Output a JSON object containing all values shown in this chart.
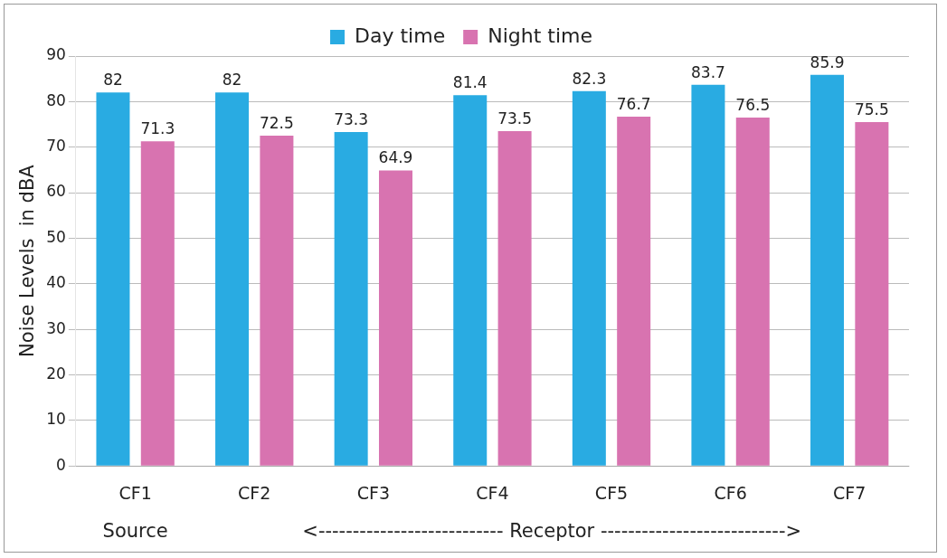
{
  "chart_data": {
    "type": "bar",
    "ylabel": "Noise Levels  in dBA",
    "categories": [
      "CF1",
      "CF2",
      "CF3",
      "CF4",
      "CF5",
      "CF6",
      "CF7"
    ],
    "series": [
      {
        "name": "Day time",
        "color": "#29abe2",
        "values": [
          82,
          82,
          73.3,
          81.4,
          82.3,
          83.7,
          85.9
        ]
      },
      {
        "name": "Night time",
        "color": "#d873b0",
        "values": [
          71.3,
          72.5,
          64.9,
          73.5,
          76.7,
          76.5,
          75.5
        ]
      }
    ],
    "ylim": [
      0,
      90
    ],
    "yticks": [
      0,
      10,
      20,
      30,
      40,
      50,
      60,
      70,
      80,
      90
    ],
    "grid": "y",
    "legend": "top",
    "data_labels": true,
    "annotations": [
      "Source",
      "<---------------------------  Receptor  --------------------------->"
    ]
  }
}
